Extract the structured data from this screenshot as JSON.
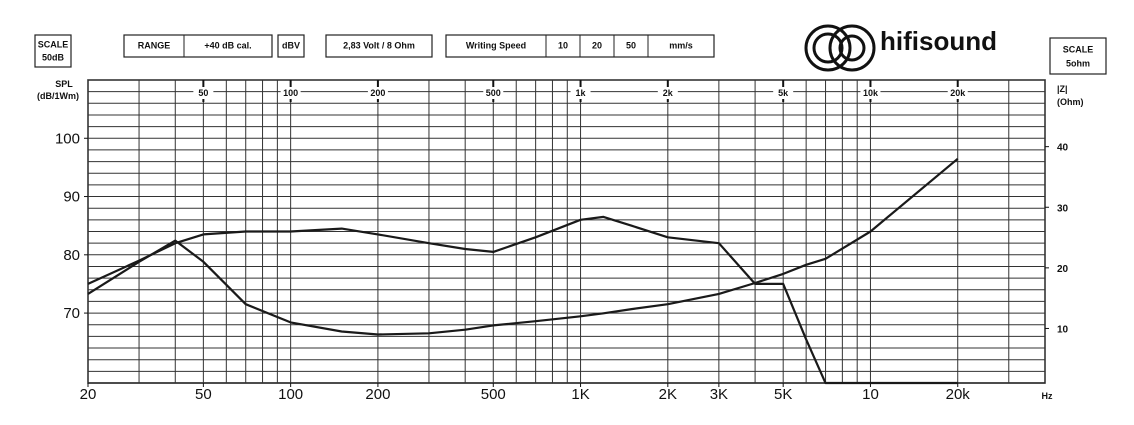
{
  "header": {
    "scale_left": [
      "SCALE",
      "50dB"
    ],
    "range_label": "RANGE",
    "range_value": "+40 dB cal.",
    "unit": "dBV",
    "drive": "2,83 Volt / 8 Ohm",
    "writing_speed": "Writing Speed",
    "speeds": [
      "10",
      "20",
      "50"
    ],
    "speed_unit": "mm/s",
    "logo": "hifisound",
    "scale_right": [
      "SCALE",
      "5ohm"
    ]
  },
  "chart_data": {
    "type": "line",
    "log_x": true,
    "grid": true,
    "y_label": [
      "SPL",
      "(dB/1Wm)"
    ],
    "y2_label": [
      "|Z|",
      "(Ohm)"
    ],
    "x_unit": "Hz",
    "xlim": [
      20,
      40000
    ],
    "ylim": [
      58,
      110
    ],
    "y2lim": [
      1,
      51
    ],
    "xticks": [
      20,
      50,
      100,
      200,
      500,
      {
        "value": 1000,
        "label": "1K"
      },
      {
        "value": 2000,
        "label": "2K"
      },
      {
        "value": 3000,
        "label": "3K"
      },
      {
        "value": 5000,
        "label": "5K"
      },
      {
        "value": 10000,
        "label": "10"
      },
      {
        "value": 20000,
        "label": "20k"
      }
    ],
    "xticks_top": [
      50,
      100,
      200,
      500,
      {
        "value": 1000,
        "label": "1k"
      },
      {
        "value": 2000,
        "label": "2k"
      },
      {
        "value": 5000,
        "label": "5k"
      },
      {
        "value": 10000,
        "label": "10k"
      },
      {
        "value": 20000,
        "label": "20k"
      }
    ],
    "x_grid": [
      20,
      30,
      40,
      50,
      60,
      70,
      80,
      90,
      100,
      200,
      300,
      400,
      500,
      600,
      700,
      800,
      900,
      1000,
      2000,
      3000,
      4000,
      5000,
      6000,
      7000,
      8000,
      9000,
      10000,
      20000,
      30000,
      40000
    ],
    "y_grid": [
      60,
      62,
      64,
      66,
      68,
      70,
      72,
      74,
      76,
      78,
      80,
      82,
      84,
      86,
      88,
      90,
      92,
      94,
      96,
      98,
      100,
      102,
      104,
      106,
      108,
      110
    ],
    "yticks": [
      70,
      80,
      90,
      100
    ],
    "y2ticks": [
      10,
      20,
      30,
      40
    ],
    "x": [
      20,
      30,
      40,
      50,
      70,
      100,
      150,
      200,
      300,
      400,
      500,
      700,
      1000,
      1200,
      1500,
      2000,
      3000,
      4000,
      5000,
      6000,
      7000,
      10000,
      20000
    ],
    "series": [
      {
        "color": "#1a1a1a",
        "values": [
          75,
          79,
          82,
          83.5,
          84,
          84,
          84.5,
          83.5,
          82,
          81,
          80.5,
          83,
          86,
          86.5,
          85,
          83,
          82,
          75,
          75,
          65.5,
          58,
          58,
          58
        ]
      },
      {
        "color": "#1a1a1a",
        "axis": "y2",
        "values": [
          15.7,
          21,
          24.5,
          21,
          14,
          11,
          9.5,
          9,
          9.2,
          9.8,
          10.5,
          11.2,
          12,
          12.5,
          13.2,
          14,
          15.7,
          17.5,
          19,
          20.5,
          21.5,
          26,
          38
        ]
      }
    ]
  }
}
